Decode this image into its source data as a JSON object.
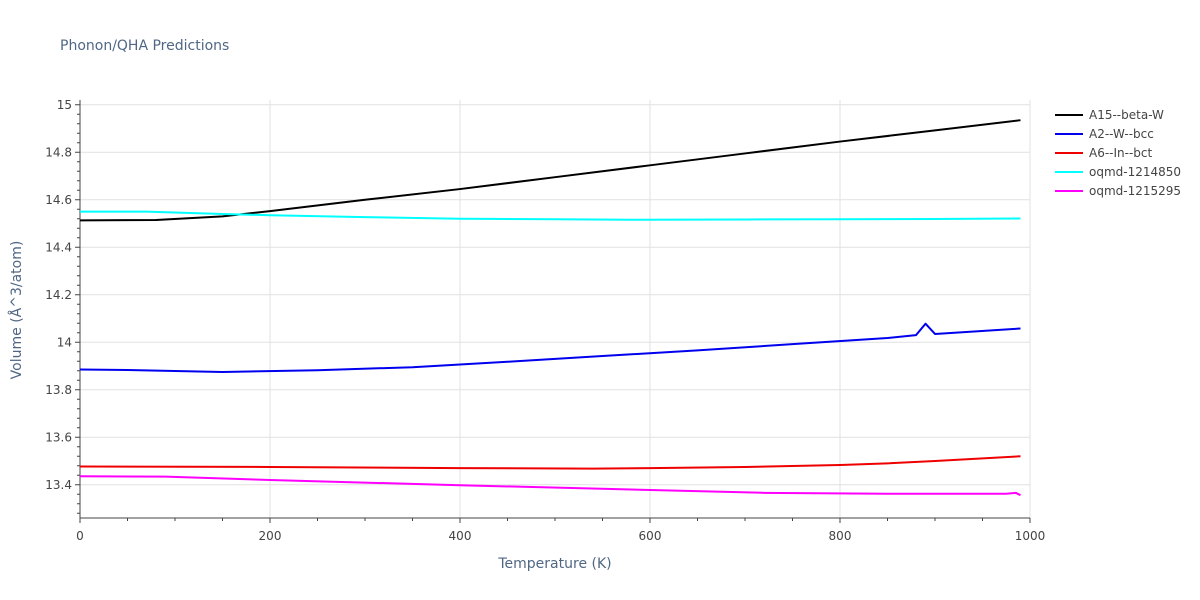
{
  "chart_data": {
    "type": "line",
    "title": "Phonon/QHA Predictions",
    "xlabel": "Temperature (K)",
    "ylabel": "Volume (Å^3/atom)",
    "xlim": [
      0,
      1000
    ],
    "ylim": [
      13.26,
      15.02
    ],
    "xticks": [
      0,
      200,
      400,
      600,
      800,
      1000
    ],
    "xtick_labels": [
      "0",
      "200",
      "400",
      "600",
      "800",
      "1000"
    ],
    "yticks": [
      13.4,
      13.6,
      13.8,
      14,
      14.2,
      14.4,
      14.6,
      14.8,
      15
    ],
    "ytick_labels": [
      "13.4",
      "13.6",
      "13.8",
      "14",
      "14.2",
      "14.4",
      "14.6",
      "14.8",
      "15"
    ],
    "grid": true,
    "legend_position": "top-right",
    "series": [
      {
        "name": "A15--beta-W",
        "color": "#000000",
        "x": [
          0,
          80,
          150,
          200,
          300,
          400,
          500,
          600,
          700,
          800,
          900,
          990
        ],
        "y": [
          14.513,
          14.515,
          14.53,
          14.552,
          14.6,
          14.645,
          14.695,
          14.745,
          14.795,
          14.845,
          14.892,
          14.935
        ]
      },
      {
        "name": "A2--W--bcc",
        "color": "#0000ee",
        "x": [
          0,
          50,
          150,
          250,
          350,
          450,
          550,
          650,
          750,
          850,
          880,
          890,
          900,
          990
        ],
        "y": [
          13.885,
          13.883,
          13.875,
          13.882,
          13.895,
          13.918,
          13.942,
          13.966,
          13.992,
          14.018,
          14.03,
          14.078,
          14.035,
          14.058
        ]
      },
      {
        "name": "A6--In--bct",
        "color": "#ee0000",
        "x": [
          0,
          200,
          400,
          540,
          600,
          700,
          800,
          850,
          900,
          990
        ],
        "y": [
          13.477,
          13.475,
          13.47,
          13.468,
          13.47,
          13.475,
          13.483,
          13.49,
          13.5,
          13.52
        ]
      },
      {
        "name": "oqmd-1214850",
        "color": "#00ffff",
        "x": [
          0,
          70,
          150,
          200,
          300,
          400,
          500,
          580,
          700,
          800,
          900,
          990
        ],
        "y": [
          14.55,
          14.55,
          14.54,
          14.535,
          14.527,
          14.52,
          14.518,
          14.516,
          14.517,
          14.518,
          14.519,
          14.521
        ]
      },
      {
        "name": "oqmd-1215295",
        "color": "#ff00ff",
        "x": [
          0,
          90,
          200,
          400,
          600,
          720,
          850,
          975,
          985,
          990
        ],
        "y": [
          13.436,
          13.434,
          13.42,
          13.398,
          13.378,
          13.366,
          13.362,
          13.362,
          13.366,
          13.356
        ]
      }
    ]
  }
}
